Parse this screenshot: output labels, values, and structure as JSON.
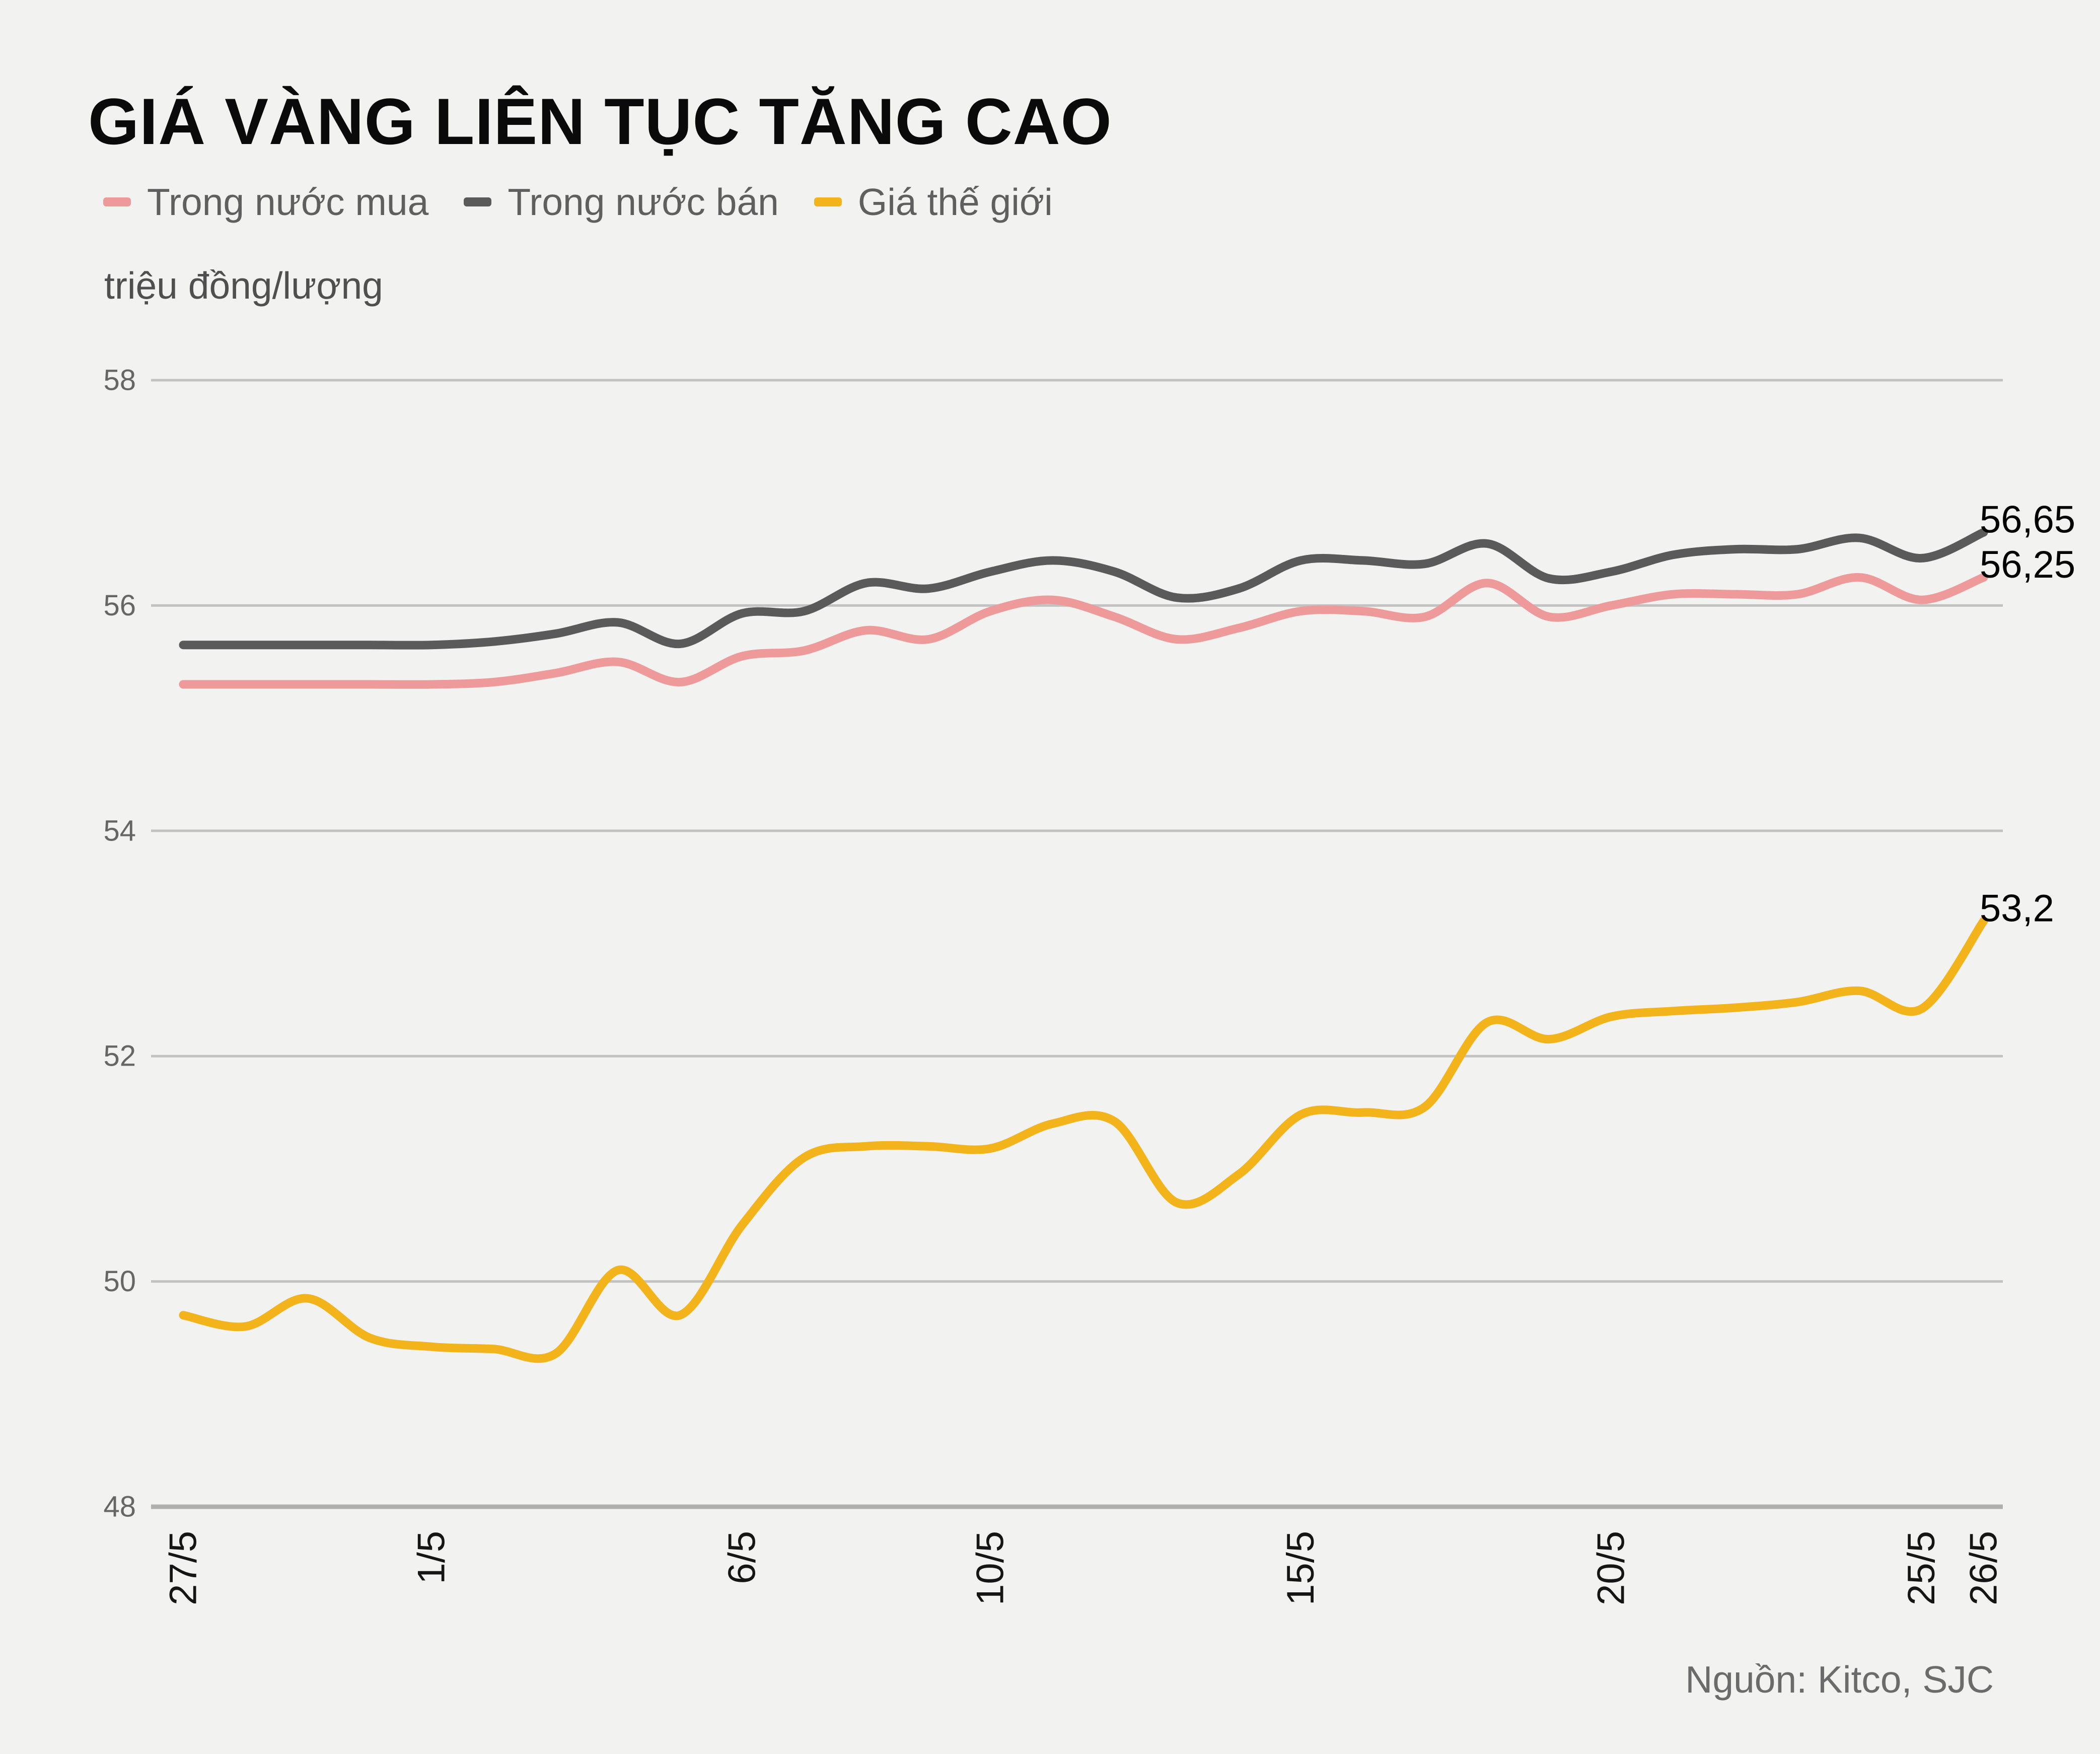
{
  "title": "GIÁ VÀNG LIÊN TỤC TĂNG CAO",
  "unit_label": "triệu đồng/lượng",
  "source_label": "Nguồn: Kitco, SJC",
  "colors": {
    "background": "#f2f2f0",
    "grid": "#c2c2c2",
    "axis": "#b0b0b0",
    "title_text": "#0a0a0a",
    "y_tick_text": "#666666",
    "x_tick_text": "#151515",
    "end_label_text": "#000000",
    "legend_text": "#5f5f5f",
    "source_text": "#6b6b6b"
  },
  "legend": {
    "items": [
      {
        "label": "Trong nước mua",
        "color": "#ee9a9a"
      },
      {
        "label": "Trong nước bán",
        "color": "#5a5a5a"
      },
      {
        "label": "Giá thế giới",
        "color": "#f2b31b"
      }
    ]
  },
  "chart_data": {
    "type": "line",
    "title": "GIÁ VÀNG LIÊN TỤC TĂNG CAO",
    "ylabel": "triệu đồng/lượng",
    "ylim": [
      48,
      58
    ],
    "y_ticks": [
      58,
      56,
      54,
      52,
      50,
      48
    ],
    "grid": true,
    "legend_position": "top-left",
    "x_tick_labels": [
      "27/5",
      "1/5",
      "6/5",
      "10/5",
      "15/5",
      "20/5",
      "25/5",
      "26/5"
    ],
    "x_tick_indices": [
      0,
      4,
      9,
      13,
      18,
      23,
      28,
      29
    ],
    "series": [
      {
        "name": "Trong nước mua",
        "color": "#ee9a9a",
        "end_label": "56,25",
        "values": [
          55.3,
          55.3,
          55.3,
          55.3,
          55.3,
          55.32,
          55.4,
          55.5,
          55.32,
          55.55,
          55.6,
          55.78,
          55.7,
          55.95,
          56.05,
          55.9,
          55.7,
          55.8,
          55.95,
          55.95,
          55.9,
          56.2,
          55.9,
          56.0,
          56.1,
          56.1,
          56.1,
          56.25,
          56.05,
          56.25
        ]
      },
      {
        "name": "Trong nước bán",
        "color": "#5a5a5a",
        "end_label": "56,65",
        "values": [
          55.65,
          55.65,
          55.65,
          55.65,
          55.65,
          55.68,
          55.75,
          55.85,
          55.66,
          55.93,
          55.95,
          56.2,
          56.15,
          56.3,
          56.4,
          56.3,
          56.07,
          56.15,
          56.4,
          56.4,
          56.37,
          56.55,
          56.24,
          56.3,
          56.45,
          56.5,
          56.5,
          56.6,
          56.42,
          56.65
        ]
      },
      {
        "name": "Giá thế giới",
        "color": "#f2b31b",
        "end_label": "53,2",
        "values": [
          49.7,
          49.6,
          49.85,
          49.5,
          49.42,
          49.4,
          49.36,
          50.1,
          49.7,
          50.5,
          51.1,
          51.2,
          51.2,
          51.18,
          51.4,
          51.42,
          50.7,
          50.95,
          51.48,
          51.5,
          51.55,
          52.3,
          52.15,
          52.35,
          52.4,
          52.43,
          52.48,
          52.58,
          52.42,
          53.2
        ]
      }
    ]
  }
}
